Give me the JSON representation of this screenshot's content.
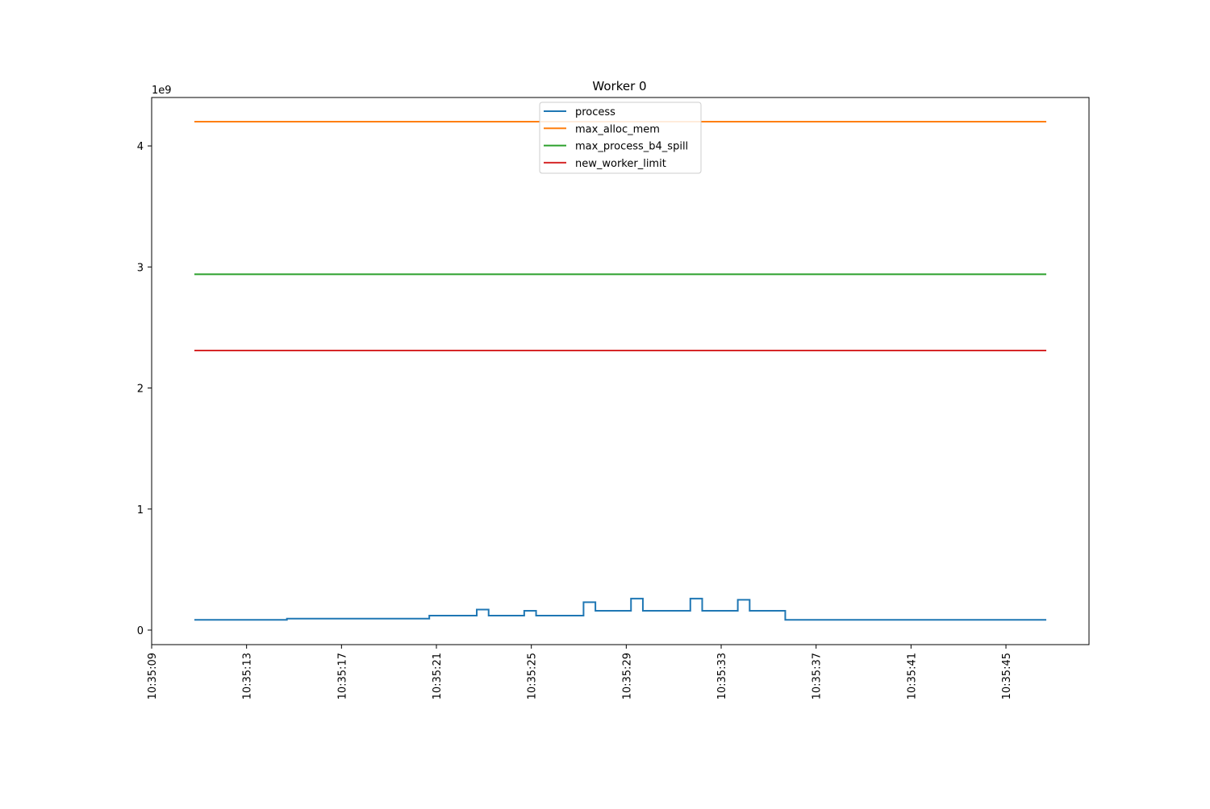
{
  "chart_data": {
    "type": "line",
    "title": "Worker 0",
    "xlabel": "",
    "ylabel": "",
    "y_offset_label": "1e9",
    "x_axis": {
      "ticks": [
        "10:35:09",
        "10:35:13",
        "10:35:17",
        "10:35:21",
        "10:35:25",
        "10:35:29",
        "10:35:33",
        "10:35:37",
        "10:35:41",
        "10:35:45"
      ],
      "range": [
        "10:35:09",
        "10:35:48.5"
      ],
      "tick_rotation": "vertical"
    },
    "y_axis": {
      "ticks": [
        0,
        1,
        2,
        3,
        4
      ],
      "range": [
        -0.12,
        4.4
      ],
      "units_multiplier": "1e9"
    },
    "grid": false,
    "legend": {
      "placement": "upper-center",
      "entries": [
        "process",
        "max_alloc_mem",
        "max_process_b4_spill",
        "new_worker_limit"
      ]
    },
    "series": [
      {
        "name": "process",
        "color": "#1f77b4",
        "step": "post",
        "points": [
          [
            "10:35:10.8",
            0.085
          ],
          [
            "10:35:14.7",
            0.095
          ],
          [
            "10:35:20.7",
            0.12
          ],
          [
            "10:35:22.7",
            0.17
          ],
          [
            "10:35:23.2",
            0.12
          ],
          [
            "10:35:24.7",
            0.16
          ],
          [
            "10:35:25.2",
            0.12
          ],
          [
            "10:35:27.2",
            0.23
          ],
          [
            "10:35:27.7",
            0.16
          ],
          [
            "10:35:29.2",
            0.26
          ],
          [
            "10:35:29.7",
            0.16
          ],
          [
            "10:35:31.7",
            0.26
          ],
          [
            "10:35:32.2",
            0.16
          ],
          [
            "10:35:33.7",
            0.25
          ],
          [
            "10:35:34.2",
            0.16
          ],
          [
            "10:35:35.7",
            0.085
          ],
          [
            "10:35:46.7",
            0.085
          ]
        ]
      },
      {
        "name": "max_alloc_mem",
        "color": "#ff7f0e",
        "points": [
          [
            "10:35:10.8",
            4.2
          ],
          [
            "10:35:46.7",
            4.2
          ]
        ]
      },
      {
        "name": "max_process_b4_spill",
        "color": "#2ca02c",
        "points": [
          [
            "10:35:10.8",
            2.94
          ],
          [
            "10:35:46.7",
            2.94
          ]
        ]
      },
      {
        "name": "new_worker_limit",
        "color": "#d62728",
        "points": [
          [
            "10:35:10.8",
            2.31
          ],
          [
            "10:35:46.7",
            2.31
          ]
        ]
      }
    ]
  }
}
